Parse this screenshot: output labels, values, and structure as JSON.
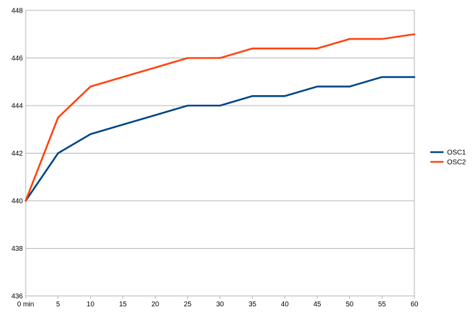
{
  "chart_data": {
    "type": "line",
    "title": "",
    "xlabel": "",
    "ylabel": "",
    "x": [
      0,
      5,
      10,
      15,
      20,
      25,
      30,
      35,
      40,
      45,
      50,
      55,
      60
    ],
    "x_tick_labels": [
      "0 min",
      "5",
      "10",
      "15",
      "20",
      "25",
      "30",
      "35",
      "40",
      "45",
      "50",
      "55",
      "60"
    ],
    "xlim": [
      0,
      60
    ],
    "ylim": [
      436,
      448
    ],
    "y_ticks": [
      436,
      438,
      440,
      442,
      444,
      446,
      448
    ],
    "grid": "horizontal",
    "legend": "right",
    "series": [
      {
        "name": "OSC1",
        "color": "#004586",
        "values": [
          440,
          442,
          442.8,
          443.2,
          443.6,
          444,
          444,
          444.4,
          444.4,
          444.8,
          444.8,
          445.2,
          445.2
        ]
      },
      {
        "name": "OSC2",
        "color": "#ff420e",
        "values": [
          440,
          443.5,
          444.8,
          445.2,
          445.6,
          446,
          446,
          446.4,
          446.4,
          446.4,
          446.8,
          446.8,
          447
        ]
      }
    ]
  }
}
